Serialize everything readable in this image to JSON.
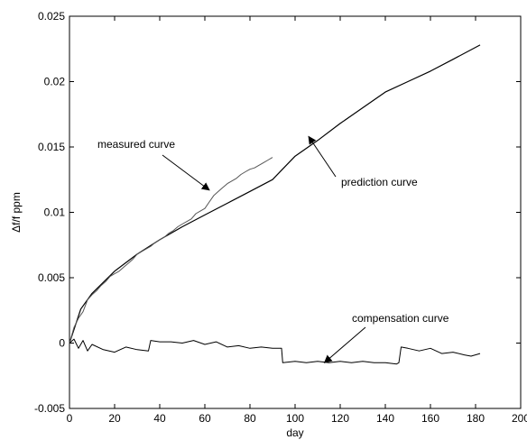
{
  "chart_data": {
    "type": "line",
    "title": "",
    "xlabel": "day",
    "ylabel": "Δf/f  ppm",
    "xlim": [
      0,
      200
    ],
    "ylim": [
      -0.005,
      0.025
    ],
    "x_ticks": [
      "0",
      "20",
      "40",
      "60",
      "80",
      "100",
      "120",
      "140",
      "160",
      "180",
      "200"
    ],
    "y_ticks": [
      "-0.005",
      "0",
      "0.005",
      "0.01",
      "0.015",
      "0.02",
      "0.025"
    ],
    "grid": false,
    "legend": "none",
    "series": [
      {
        "name": "prediction curve",
        "x": [
          0,
          5,
          10,
          20,
          30,
          40,
          50,
          60,
          70,
          80,
          90,
          100,
          110,
          120,
          130,
          140,
          150,
          160,
          170,
          182
        ],
        "y": [
          0,
          0.0026,
          0.0038,
          0.0055,
          0.0068,
          0.0079,
          0.0089,
          0.0098,
          0.0107,
          0.0116,
          0.0125,
          0.0143,
          0.0155,
          0.0168,
          0.018,
          0.0192,
          0.02,
          0.0208,
          0.0217,
          0.0228
        ]
      },
      {
        "name": "measured curve",
        "x": [
          0,
          2,
          4,
          6,
          8,
          10,
          12,
          14,
          16,
          18,
          20,
          22,
          24,
          26,
          28,
          30,
          32,
          34,
          36,
          38,
          40,
          42,
          44,
          46,
          48,
          50,
          52,
          54,
          56,
          58,
          60,
          62,
          64,
          66,
          68,
          70,
          72,
          74,
          76,
          78,
          80,
          82,
          84,
          86,
          88,
          90
        ],
        "y": [
          0,
          0.0012,
          0.0019,
          0.0024,
          0.0033,
          0.0037,
          0.004,
          0.0044,
          0.0047,
          0.0051,
          0.0053,
          0.0055,
          0.0058,
          0.0061,
          0.0064,
          0.0068,
          0.007,
          0.0072,
          0.0074,
          0.0077,
          0.0079,
          0.0081,
          0.0084,
          0.0086,
          0.0089,
          0.0091,
          0.0093,
          0.0095,
          0.0099,
          0.0101,
          0.0103,
          0.0108,
          0.0113,
          0.0116,
          0.0119,
          0.0122,
          0.0124,
          0.0126,
          0.0129,
          0.0131,
          0.0133,
          0.0134,
          0.0136,
          0.0138,
          0.014,
          0.0142
        ]
      },
      {
        "name": "compensation curve",
        "x": [
          0,
          2,
          4,
          6,
          8,
          10,
          15,
          20,
          25,
          30,
          35,
          36,
          40,
          45,
          50,
          55,
          60,
          65,
          70,
          75,
          80,
          85,
          90,
          94,
          94.5,
          100,
          105,
          110,
          115,
          120,
          125,
          130,
          135,
          140,
          145,
          146,
          147,
          150,
          155,
          160,
          165,
          170,
          175,
          178,
          182
        ],
        "y": [
          0,
          0.0003,
          -0.0004,
          0.0002,
          -0.0006,
          -0.0001,
          -0.0005,
          -0.0007,
          -0.0003,
          -0.0005,
          -0.0006,
          0.0002,
          0.0001,
          0.0001,
          0.0,
          0.0002,
          -0.0001,
          0.0001,
          -0.0003,
          -0.0002,
          -0.0004,
          -0.0003,
          -0.0004,
          -0.0004,
          -0.0015,
          -0.0014,
          -0.0015,
          -0.0014,
          -0.0015,
          -0.0014,
          -0.0015,
          -0.0014,
          -0.0015,
          -0.0015,
          -0.0016,
          -0.0015,
          -0.0003,
          -0.0004,
          -0.0006,
          -0.0004,
          -0.0008,
          -0.0007,
          -0.0009,
          -0.001,
          -0.0008
        ]
      }
    ],
    "annotations": [
      {
        "text": "measured curve",
        "target_x": 62,
        "target_y": 0.0117
      },
      {
        "text": "prediction curve",
        "target_x": 106,
        "target_y": 0.0158
      },
      {
        "text": "compensation curve",
        "target_x": 113,
        "target_y": -0.0015
      }
    ]
  }
}
